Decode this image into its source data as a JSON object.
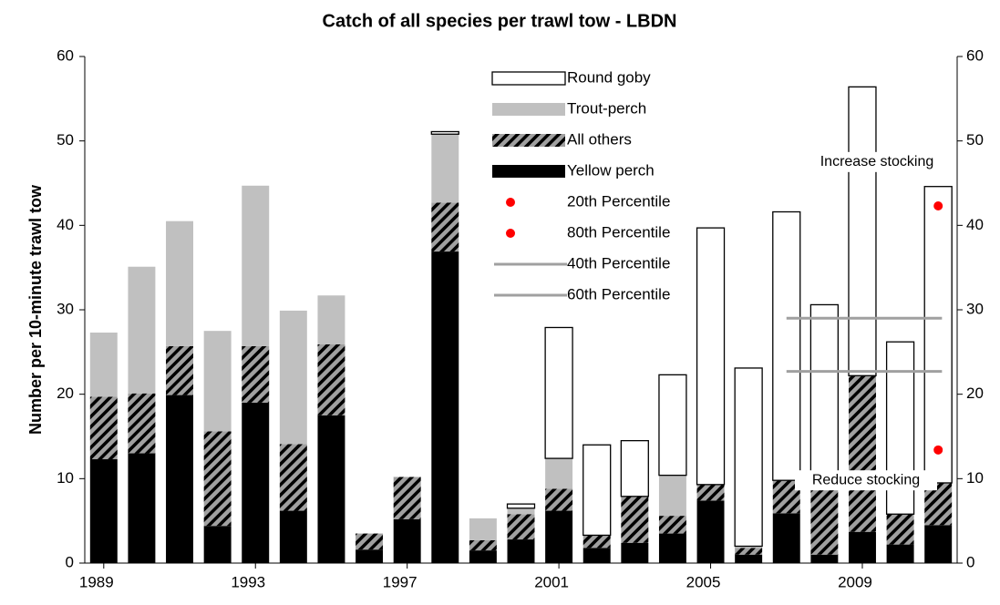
{
  "chart_data": {
    "type": "stacked_bar",
    "title": "Catch of all species per trawl tow - LBDN",
    "y_label": "Number per 10-minute trawl tow",
    "x": [
      1989,
      1990,
      1991,
      1992,
      1993,
      1994,
      1995,
      1996,
      1997,
      1998,
      1999,
      2000,
      2001,
      2002,
      2003,
      2004,
      2005,
      2006,
      2007,
      2008,
      2009,
      2010,
      2011
    ],
    "xlim": [
      1988.5,
      2011.5
    ],
    "xticks": [
      1989,
      1993,
      1997,
      2001,
      2005,
      2009
    ],
    "ylim": [
      0,
      60
    ],
    "yticks": [
      0,
      10,
      20,
      30,
      40,
      50,
      60
    ],
    "y2lim": [
      0,
      60
    ],
    "y2ticks": [
      0,
      10,
      20,
      30,
      40,
      50,
      60
    ],
    "series": [
      {
        "name": "Yellow perch",
        "color": "#000000",
        "values": [
          12.3,
          13,
          19.9,
          4.4,
          19,
          6.2,
          17.5,
          1.6,
          5.2,
          36.9,
          1.5,
          2.8,
          6.2,
          1.8,
          2.4,
          3.5,
          7.4,
          1.0,
          5.9,
          1.0,
          3.7,
          2.2,
          4.5
        ]
      },
      {
        "name": "All others",
        "color": "#808080",
        "pattern": "hatch",
        "values": [
          7.4,
          7.1,
          5.8,
          11.2,
          6.7,
          7.9,
          8.4,
          1.9,
          5.0,
          5.8,
          1.2,
          3.0,
          2.6,
          1.5,
          5.5,
          2.1,
          1.9,
          0.8,
          3.9,
          8.0,
          18.5,
          3.6,
          5.0
        ]
      },
      {
        "name": "Trout-perch",
        "color": "#c0c0c0",
        "values": [
          7.6,
          15,
          14.8,
          11.9,
          19,
          15.8,
          5.8,
          0,
          0,
          8.1,
          2.6,
          0.7,
          3.6,
          0,
          0,
          4.8,
          0,
          0.2,
          0,
          0,
          0,
          0,
          0
        ]
      },
      {
        "name": "Round goby",
        "color": "#ffffff",
        "values": [
          0,
          0,
          0,
          0,
          0,
          0,
          0,
          0,
          0,
          0.3,
          0,
          0.5,
          15.5,
          10.7,
          6.6,
          11.9,
          30.4,
          21.1,
          31.8,
          21.6,
          34.2,
          20.4,
          35.1
        ]
      }
    ],
    "percentiles": [
      {
        "name": "20th Percentile",
        "kind": "point",
        "color": "#ff0000",
        "x": [
          2011
        ],
        "values": [
          13.4
        ]
      },
      {
        "name": "80th Percentile",
        "kind": "point",
        "color": "#ff0000",
        "x": [
          2011
        ],
        "values": [
          42.3
        ]
      },
      {
        "name": "40th Percentile",
        "kind": "line",
        "color": "#a0a0a0",
        "x": [
          2007,
          2011.1
        ],
        "values": [
          22.7,
          22.7
        ]
      },
      {
        "name": "60th Percentile",
        "kind": "line",
        "color": "#a0a0a0",
        "x": [
          2007,
          2011.1
        ],
        "values": [
          29.0,
          29.0
        ]
      }
    ],
    "annotations": [
      "Increase stocking",
      "Reduce stocking"
    ]
  }
}
